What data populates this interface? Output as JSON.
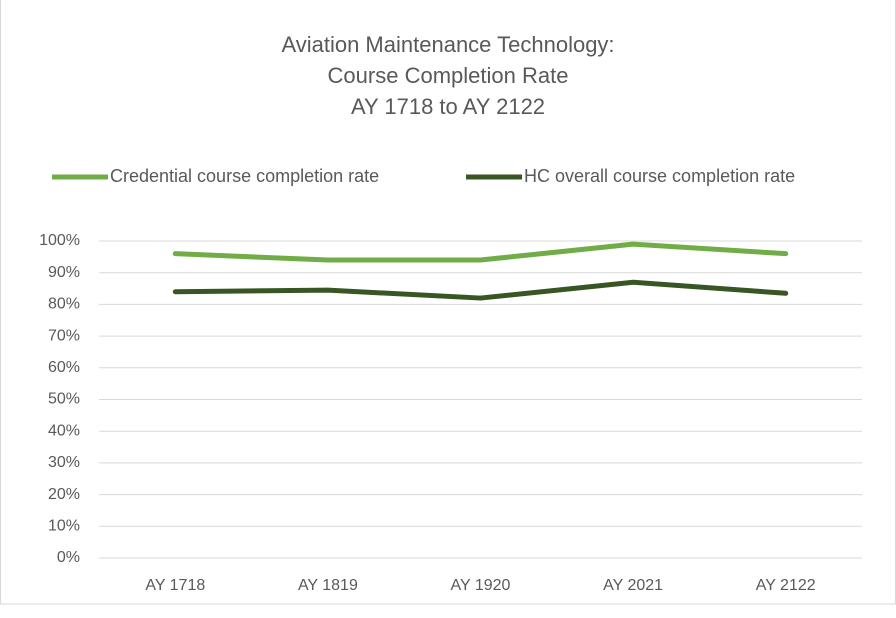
{
  "chart_data": {
    "type": "line",
    "title": [
      "Aviation Maintenance Technology:",
      "Course Completion Rate",
      "AY 1718 to AY 2122"
    ],
    "categories": [
      "AY 1718",
      "AY 1819",
      "AY 1920",
      "AY 2021",
      "AY 2122"
    ],
    "series": [
      {
        "name": "Credential course completion rate",
        "color": "#70ad47",
        "values": [
          96,
          94,
          94,
          99,
          96
        ]
      },
      {
        "name": "HC overall course completion rate",
        "color": "#375623",
        "values": [
          84,
          84.5,
          82,
          87,
          83.5
        ]
      }
    ],
    "ylim": [
      0,
      100
    ],
    "yticks": [
      {
        "value": 0,
        "label": "0%"
      },
      {
        "value": 10,
        "label": "10%"
      },
      {
        "value": 20,
        "label": "20%"
      },
      {
        "value": 30,
        "label": "30%"
      },
      {
        "value": 40,
        "label": "40%"
      },
      {
        "value": 50,
        "label": "50%"
      },
      {
        "value": 60,
        "label": "60%"
      },
      {
        "value": 70,
        "label": "70%"
      },
      {
        "value": 80,
        "label": "80%"
      },
      {
        "value": 90,
        "label": "90%"
      },
      {
        "value": 100,
        "label": "100%"
      }
    ],
    "grid": true,
    "legend": "top"
  }
}
